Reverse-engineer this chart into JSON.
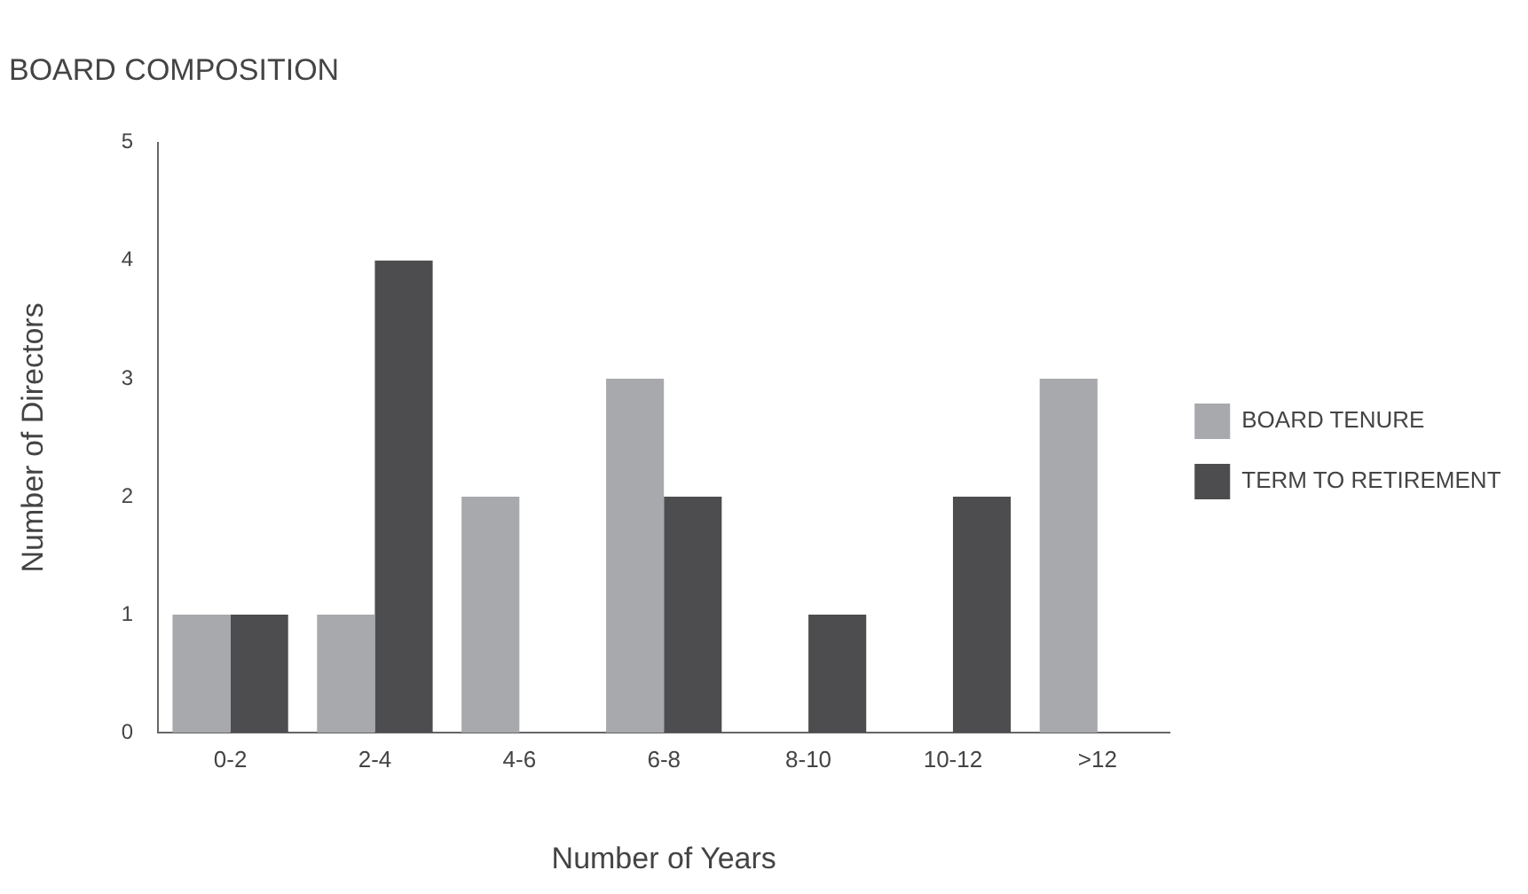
{
  "chart_data": {
    "type": "bar",
    "title": "BOARD COMPOSITION",
    "xlabel": "Number of Years",
    "ylabel": "Number of Directors",
    "categories": [
      "0-2",
      "2-4",
      "4-6",
      "6-8",
      "8-10",
      "10-12",
      ">12"
    ],
    "series": [
      {
        "name": "BOARD TENURE",
        "color": "#a7a9ac",
        "values": [
          1,
          1,
          2,
          3,
          0,
          0,
          3
        ]
      },
      {
        "name": "TERM TO RETIREMENT",
        "color": "#4d4d4f",
        "values": [
          1,
          4,
          0,
          2,
          1,
          2,
          0
        ]
      }
    ],
    "ylim": [
      0,
      5
    ],
    "yticks": [
      0,
      1,
      2,
      3,
      4,
      5
    ],
    "grid": false,
    "legend": "right"
  }
}
